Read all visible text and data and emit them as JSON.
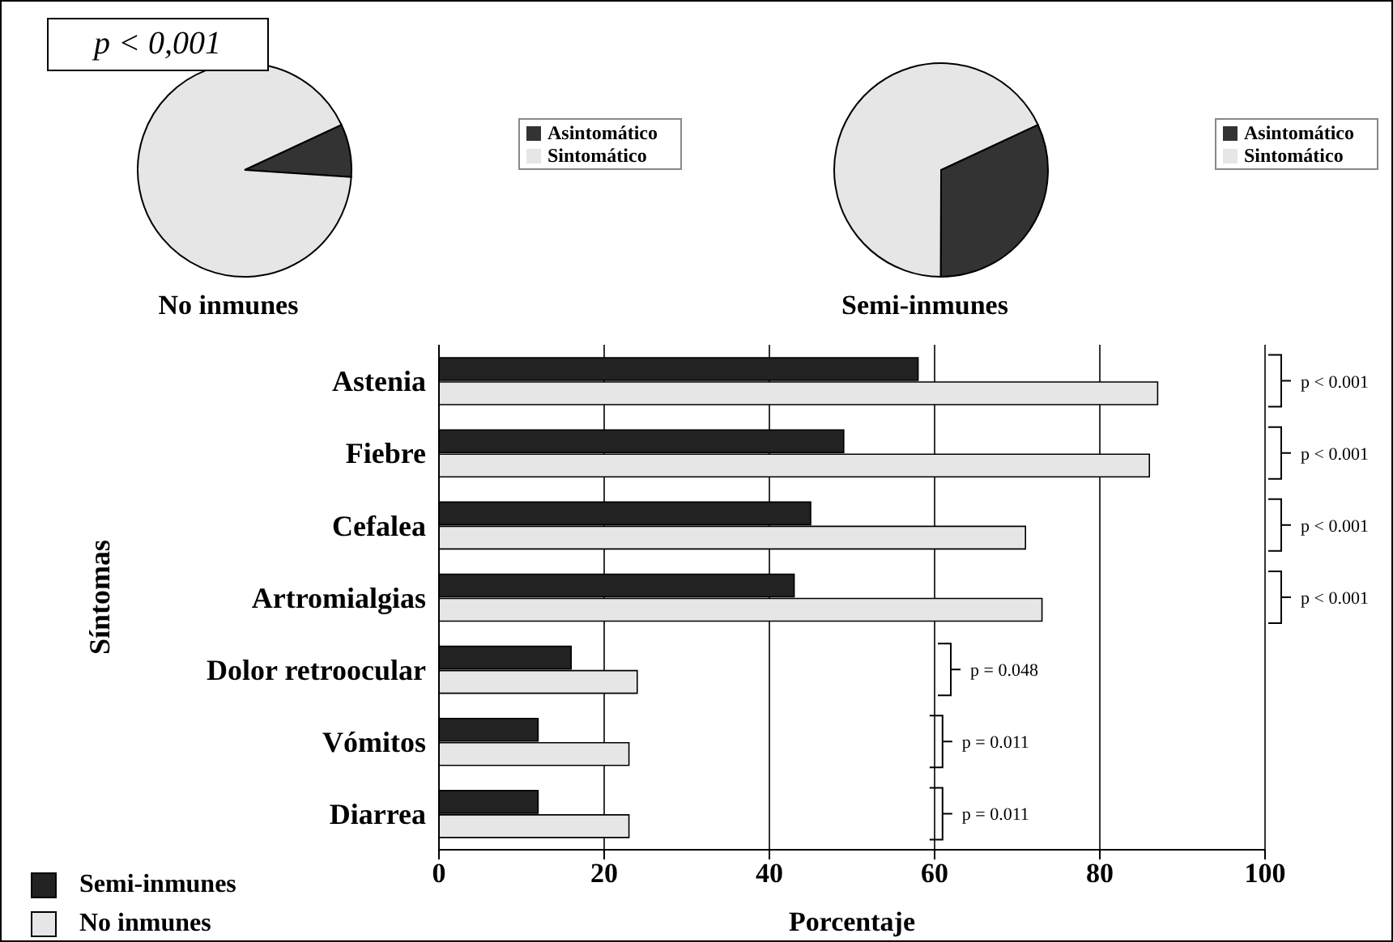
{
  "chart_data": [
    {
      "type": "pie",
      "title": "No inmunes",
      "categories": [
        "Asintomático",
        "Sintomático"
      ],
      "values": [
        8,
        92
      ],
      "colors": [
        "#333333",
        "#e6e6e6"
      ],
      "legend": "right",
      "annotations": [
        "p < 0,001"
      ]
    },
    {
      "type": "pie",
      "title": "Semi-inmunes",
      "categories": [
        "Asintomático",
        "Sintomático"
      ],
      "values": [
        32,
        68
      ],
      "colors": [
        "#333333",
        "#e6e6e6"
      ],
      "legend": "right"
    },
    {
      "type": "bar",
      "orientation": "horizontal",
      "categories": [
        "Astenia",
        "Fiebre",
        "Cefalea",
        "Artromialgias",
        "Dolor retroocular",
        "Vómitos",
        "Diarrea"
      ],
      "series": [
        {
          "name": "Semi-inmunes",
          "color": "#222222",
          "values": [
            58,
            49,
            45,
            43,
            16,
            12,
            12
          ]
        },
        {
          "name": "No inmunes",
          "color": "#e6e6e6",
          "values": [
            87,
            86,
            71,
            73,
            24,
            23,
            23
          ]
        }
      ],
      "xlabel": "Porcentaje",
      "ylabel": "Síntomas",
      "xlim": [
        0,
        100
      ],
      "xticks": [
        0,
        20,
        40,
        60,
        80,
        100
      ],
      "grid": "x",
      "legend": "bottom left",
      "annotations": [
        "p < 0.001",
        "p < 0.001",
        "p < 0.001",
        "p < 0.001",
        "p = 0.048",
        "p = 0.011",
        "p = 0.011"
      ]
    }
  ]
}
